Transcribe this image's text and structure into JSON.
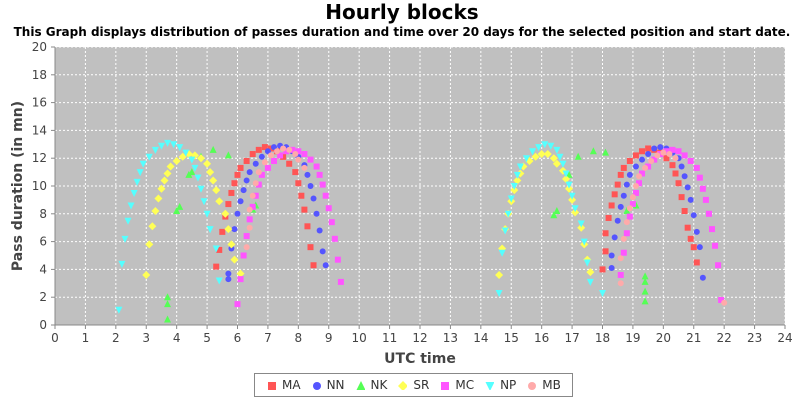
{
  "chart_data": {
    "type": "scatter",
    "title": "Hourly blocks",
    "subtitle": "This Graph displays distribution of passes duration and time over 20 days for the selected position and start date.",
    "xlabel": "UTC time",
    "ylabel": "Pass duration (in mn)",
    "xlim": [
      0,
      24
    ],
    "ylim": [
      0,
      20
    ],
    "xticks": [
      0,
      1,
      2,
      3,
      4,
      5,
      6,
      7,
      8,
      9,
      10,
      11,
      12,
      13,
      14,
      15,
      16,
      17,
      18,
      19,
      20,
      21,
      22,
      23,
      24
    ],
    "yticks": [
      0,
      2,
      4,
      6,
      8,
      10,
      12,
      14,
      16,
      18,
      20
    ],
    "grid": true,
    "legend_position": "bottom",
    "series": [
      {
        "name": "MA",
        "color": "#ff5555",
        "marker": "square",
        "points": [
          [
            5.3,
            4.2
          ],
          [
            5.4,
            5.4
          ],
          [
            5.5,
            6.7
          ],
          [
            5.6,
            7.8
          ],
          [
            5.7,
            8.7
          ],
          [
            5.8,
            9.5
          ],
          [
            5.9,
            10.2
          ],
          [
            6.0,
            10.8
          ],
          [
            6.1,
            11.3
          ],
          [
            6.3,
            11.8
          ],
          [
            6.5,
            12.3
          ],
          [
            6.7,
            12.6
          ],
          [
            6.9,
            12.8
          ],
          [
            7.1,
            12.7
          ],
          [
            7.3,
            12.5
          ],
          [
            7.5,
            12.1
          ],
          [
            7.7,
            11.6
          ],
          [
            7.9,
            11.0
          ],
          [
            8.0,
            10.2
          ],
          [
            8.1,
            9.3
          ],
          [
            8.2,
            8.3
          ],
          [
            8.3,
            7.1
          ],
          [
            8.4,
            5.6
          ],
          [
            8.5,
            4.3
          ],
          [
            18.0,
            4.0
          ],
          [
            18.1,
            5.3
          ],
          [
            18.1,
            6.6
          ],
          [
            18.2,
            7.7
          ],
          [
            18.3,
            8.6
          ],
          [
            18.4,
            9.4
          ],
          [
            18.5,
            10.1
          ],
          [
            18.6,
            10.8
          ],
          [
            18.7,
            11.3
          ],
          [
            18.9,
            11.8
          ],
          [
            19.1,
            12.2
          ],
          [
            19.3,
            12.5
          ],
          [
            19.5,
            12.7
          ],
          [
            19.7,
            12.6
          ],
          [
            19.9,
            12.4
          ],
          [
            20.1,
            12.0
          ],
          [
            20.3,
            11.5
          ],
          [
            20.4,
            10.9
          ],
          [
            20.5,
            10.2
          ],
          [
            20.6,
            9.2
          ],
          [
            20.7,
            8.2
          ],
          [
            20.8,
            7.0
          ],
          [
            20.9,
            6.2
          ],
          [
            21.0,
            5.6
          ],
          [
            21.1,
            4.5
          ]
        ]
      },
      {
        "name": "NN",
        "color": "#5555ff",
        "marker": "circle",
        "points": [
          [
            5.7,
            3.3
          ],
          [
            5.7,
            3.7
          ],
          [
            5.8,
            5.5
          ],
          [
            5.9,
            6.9
          ],
          [
            6.0,
            8.0
          ],
          [
            6.1,
            8.9
          ],
          [
            6.2,
            9.7
          ],
          [
            6.3,
            10.4
          ],
          [
            6.4,
            11.0
          ],
          [
            6.6,
            11.6
          ],
          [
            6.8,
            12.1
          ],
          [
            7.0,
            12.5
          ],
          [
            7.2,
            12.8
          ],
          [
            7.4,
            12.9
          ],
          [
            7.6,
            12.8
          ],
          [
            7.8,
            12.5
          ],
          [
            8.0,
            12.1
          ],
          [
            8.2,
            11.5
          ],
          [
            8.3,
            10.8
          ],
          [
            8.4,
            10.0
          ],
          [
            8.5,
            9.1
          ],
          [
            8.6,
            8.0
          ],
          [
            8.7,
            6.8
          ],
          [
            8.8,
            5.3
          ],
          [
            8.9,
            4.3
          ],
          [
            18.3,
            4.1
          ],
          [
            18.3,
            5.0
          ],
          [
            18.4,
            6.3
          ],
          [
            18.5,
            7.5
          ],
          [
            18.6,
            8.5
          ],
          [
            18.7,
            9.3
          ],
          [
            18.8,
            10.1
          ],
          [
            18.9,
            10.8
          ],
          [
            19.1,
            11.4
          ],
          [
            19.3,
            11.9
          ],
          [
            19.5,
            12.3
          ],
          [
            19.7,
            12.7
          ],
          [
            19.9,
            12.8
          ],
          [
            20.1,
            12.7
          ],
          [
            20.3,
            12.4
          ],
          [
            20.5,
            12.0
          ],
          [
            20.6,
            11.4
          ],
          [
            20.7,
            10.7
          ],
          [
            20.8,
            9.9
          ],
          [
            20.9,
            9.0
          ],
          [
            21.0,
            7.9
          ],
          [
            21.1,
            6.7
          ],
          [
            21.2,
            5.6
          ],
          [
            21.3,
            3.4
          ]
        ]
      },
      {
        "name": "NK",
        "color": "#55ff55",
        "marker": "triangle-up",
        "points": [
          [
            3.7,
            0.4
          ],
          [
            3.7,
            1.5
          ],
          [
            3.7,
            2.0
          ],
          [
            4.0,
            8.2
          ],
          [
            4.1,
            8.5
          ],
          [
            4.4,
            10.8
          ],
          [
            4.5,
            11.0
          ],
          [
            4.8,
            12.1
          ],
          [
            5.2,
            12.6
          ],
          [
            5.7,
            12.2
          ],
          [
            6.5,
            8.3
          ],
          [
            6.6,
            8.6
          ],
          [
            16.4,
            7.9
          ],
          [
            16.5,
            8.2
          ],
          [
            16.9,
            10.8
          ],
          [
            17.2,
            12.1
          ],
          [
            17.7,
            12.5
          ],
          [
            18.1,
            12.4
          ],
          [
            18.8,
            8.2
          ],
          [
            19.1,
            8.6
          ],
          [
            19.4,
            1.7
          ],
          [
            19.4,
            2.4
          ],
          [
            19.4,
            3.1
          ],
          [
            19.4,
            3.5
          ]
        ]
      },
      {
        "name": "SR",
        "color": "#ffff55",
        "marker": "diamond",
        "points": [
          [
            3.0,
            3.6
          ],
          [
            3.1,
            5.8
          ],
          [
            3.2,
            7.1
          ],
          [
            3.3,
            8.2
          ],
          [
            3.4,
            9.1
          ],
          [
            3.5,
            9.8
          ],
          [
            3.6,
            10.4
          ],
          [
            3.7,
            10.9
          ],
          [
            3.8,
            11.4
          ],
          [
            4.0,
            11.8
          ],
          [
            4.2,
            12.1
          ],
          [
            4.4,
            12.3
          ],
          [
            4.6,
            12.2
          ],
          [
            4.8,
            12.0
          ],
          [
            5.0,
            11.6
          ],
          [
            5.1,
            11.0
          ],
          [
            5.2,
            10.4
          ],
          [
            5.3,
            9.7
          ],
          [
            5.4,
            8.9
          ],
          [
            5.6,
            8.0
          ],
          [
            5.7,
            6.9
          ],
          [
            5.8,
            5.8
          ],
          [
            5.9,
            4.7
          ],
          [
            6.1,
            3.7
          ],
          [
            14.6,
            3.6
          ],
          [
            14.7,
            5.5
          ],
          [
            14.8,
            6.9
          ],
          [
            14.9,
            8.0
          ],
          [
            15.0,
            8.9
          ],
          [
            15.1,
            9.7
          ],
          [
            15.2,
            10.4
          ],
          [
            15.3,
            10.9
          ],
          [
            15.4,
            11.4
          ],
          [
            15.6,
            11.8
          ],
          [
            15.8,
            12.1
          ],
          [
            16.0,
            12.3
          ],
          [
            16.2,
            12.3
          ],
          [
            16.4,
            12.0
          ],
          [
            16.5,
            11.6
          ],
          [
            16.7,
            11.1
          ],
          [
            16.8,
            10.5
          ],
          [
            16.9,
            9.8
          ],
          [
            17.0,
            9.0
          ],
          [
            17.1,
            8.1
          ],
          [
            17.3,
            7.0
          ],
          [
            17.4,
            5.8
          ],
          [
            17.5,
            4.7
          ],
          [
            17.6,
            3.8
          ]
        ]
      },
      {
        "name": "MC",
        "color": "#ff55ff",
        "marker": "square",
        "points": [
          [
            6.0,
            1.5
          ],
          [
            6.1,
            3.3
          ],
          [
            6.2,
            5.0
          ],
          [
            6.3,
            6.4
          ],
          [
            6.4,
            7.6
          ],
          [
            6.5,
            8.5
          ],
          [
            6.6,
            9.3
          ],
          [
            6.7,
            10.1
          ],
          [
            6.8,
            10.8
          ],
          [
            7.0,
            11.3
          ],
          [
            7.2,
            11.8
          ],
          [
            7.4,
            12.2
          ],
          [
            7.6,
            12.5
          ],
          [
            7.8,
            12.6
          ],
          [
            8.0,
            12.5
          ],
          [
            8.2,
            12.3
          ],
          [
            8.4,
            11.9
          ],
          [
            8.6,
            11.4
          ],
          [
            8.7,
            10.8
          ],
          [
            8.8,
            10.1
          ],
          [
            8.9,
            9.3
          ],
          [
            9.0,
            8.4
          ],
          [
            9.1,
            7.4
          ],
          [
            9.2,
            6.2
          ],
          [
            9.3,
            4.7
          ],
          [
            9.4,
            3.1
          ],
          [
            18.6,
            3.6
          ],
          [
            18.7,
            5.2
          ],
          [
            18.8,
            6.6
          ],
          [
            18.9,
            7.8
          ],
          [
            19.0,
            8.7
          ],
          [
            19.1,
            9.5
          ],
          [
            19.2,
            10.2
          ],
          [
            19.3,
            10.9
          ],
          [
            19.5,
            11.4
          ],
          [
            19.7,
            11.9
          ],
          [
            19.9,
            12.3
          ],
          [
            20.1,
            12.5
          ],
          [
            20.3,
            12.6
          ],
          [
            20.5,
            12.5
          ],
          [
            20.7,
            12.2
          ],
          [
            20.9,
            11.8
          ],
          [
            21.1,
            11.3
          ],
          [
            21.2,
            10.6
          ],
          [
            21.3,
            9.8
          ],
          [
            21.4,
            9.0
          ],
          [
            21.5,
            8.0
          ],
          [
            21.6,
            6.9
          ],
          [
            21.7,
            5.7
          ],
          [
            21.8,
            4.3
          ],
          [
            21.9,
            1.8
          ]
        ]
      },
      {
        "name": "NP",
        "color": "#55ffff",
        "marker": "triangle-down",
        "points": [
          [
            2.1,
            1.1
          ],
          [
            2.2,
            4.4
          ],
          [
            2.3,
            6.2
          ],
          [
            2.4,
            7.5
          ],
          [
            2.5,
            8.6
          ],
          [
            2.6,
            9.5
          ],
          [
            2.7,
            10.3
          ],
          [
            2.8,
            11.0
          ],
          [
            2.9,
            11.6
          ],
          [
            3.1,
            12.1
          ],
          [
            3.3,
            12.6
          ],
          [
            3.5,
            12.9
          ],
          [
            3.7,
            13.1
          ],
          [
            3.9,
            13.0
          ],
          [
            4.1,
            12.8
          ],
          [
            4.3,
            12.4
          ],
          [
            4.5,
            11.9
          ],
          [
            4.6,
            11.3
          ],
          [
            4.7,
            10.6
          ],
          [
            4.8,
            9.8
          ],
          [
            4.9,
            8.9
          ],
          [
            5.0,
            8.0
          ],
          [
            5.1,
            6.9
          ],
          [
            5.3,
            5.5
          ],
          [
            5.4,
            3.2
          ],
          [
            14.6,
            2.3
          ],
          [
            14.7,
            5.2
          ],
          [
            14.8,
            6.8
          ],
          [
            14.9,
            8.0
          ],
          [
            15.0,
            9.1
          ],
          [
            15.1,
            10.0
          ],
          [
            15.2,
            10.8
          ],
          [
            15.3,
            11.4
          ],
          [
            15.5,
            12.0
          ],
          [
            15.7,
            12.5
          ],
          [
            15.9,
            12.8
          ],
          [
            16.1,
            13.0
          ],
          [
            16.3,
            12.9
          ],
          [
            16.5,
            12.6
          ],
          [
            16.6,
            12.1
          ],
          [
            16.7,
            11.6
          ],
          [
            16.8,
            10.9
          ],
          [
            16.9,
            10.1
          ],
          [
            17.0,
            9.3
          ],
          [
            17.1,
            8.4
          ],
          [
            17.3,
            7.3
          ],
          [
            17.4,
            6.0
          ],
          [
            17.5,
            4.5
          ],
          [
            17.6,
            3.1
          ],
          [
            18.0,
            2.3
          ]
        ]
      },
      {
        "name": "MB",
        "color": "#ffaaaa",
        "marker": "circle",
        "points": [
          [
            6.3,
            5.6
          ],
          [
            6.4,
            7.0
          ],
          [
            6.4,
            8.3
          ],
          [
            6.5,
            9.3
          ],
          [
            6.6,
            10.2
          ],
          [
            6.7,
            11.0
          ],
          [
            6.9,
            11.7
          ],
          [
            7.1,
            12.2
          ],
          [
            7.3,
            12.5
          ],
          [
            7.5,
            12.7
          ],
          [
            7.7,
            12.6
          ],
          [
            7.9,
            12.3
          ],
          [
            8.0,
            11.9
          ],
          [
            8.2,
            11.3
          ],
          [
            18.6,
            4.8
          ],
          [
            18.7,
            6.2
          ],
          [
            18.8,
            7.4
          ],
          [
            18.9,
            8.4
          ],
          [
            19.0,
            9.2
          ],
          [
            19.1,
            10.0
          ],
          [
            19.2,
            10.7
          ],
          [
            19.4,
            11.3
          ],
          [
            19.6,
            11.8
          ],
          [
            19.8,
            12.2
          ],
          [
            20.0,
            12.4
          ],
          [
            20.2,
            12.3
          ],
          [
            20.4,
            12.0
          ],
          [
            18.6,
            3.0
          ],
          [
            22.0,
            1.6
          ]
        ]
      }
    ]
  }
}
